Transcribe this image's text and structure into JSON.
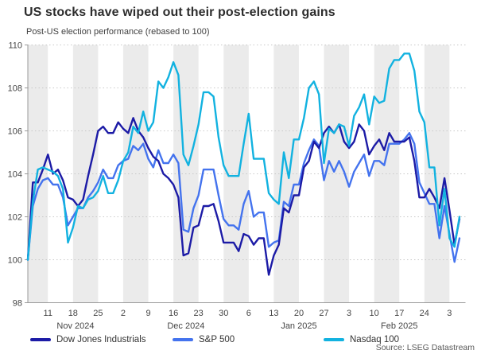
{
  "header": {
    "title": "US stocks have wiped out their post-election gains",
    "subtitle": "Post-US election performance (rebased to 100)"
  },
  "source": "Source: LSEG Datastream",
  "legend": [
    {
      "label": "Dow Jones Industrials",
      "color": "#1c1ba6"
    },
    {
      "label": "S&P 500",
      "color": "#4473ee"
    },
    {
      "label": "Nasdaq 100",
      "color": "#12b2e0"
    }
  ],
  "colors": {
    "band": "#ebebeb",
    "grid": "#c8c8c8",
    "axis": "#9a9a9a",
    "tick_text": "#454545"
  },
  "chart_data": {
    "type": "line",
    "title": "US stocks have wiped out their post-election gains",
    "subtitle": "Post-US election performance (rebased to 100)",
    "ylim": [
      98,
      110
    ],
    "y_ticks": [
      98,
      100,
      102,
      104,
      106,
      108,
      110
    ],
    "grid": "horizontal-dotted",
    "background_bands": "alternating-weekly-gray",
    "legend_position": "bottom",
    "source": "Source: LSEG Datastream",
    "x_tick_labels": [
      "11",
      "18",
      "25",
      "2",
      "9",
      "16",
      "23",
      "30",
      "6",
      "13",
      "20",
      "27",
      "3",
      "10",
      "17",
      "24",
      "3"
    ],
    "month_labels": [
      "Nov 2024",
      "Dec 2024",
      "Jan 2025",
      "Feb 2025"
    ],
    "dates": [
      "Nov 5",
      "Nov 6",
      "Nov 7",
      "Nov 8",
      "Nov 11",
      "Nov 12",
      "Nov 13",
      "Nov 14",
      "Nov 15",
      "Nov 18",
      "Nov 19",
      "Nov 20",
      "Nov 21",
      "Nov 22",
      "Nov 25",
      "Nov 26",
      "Nov 27",
      "Nov 28",
      "Nov 29",
      "Dec 2",
      "Dec 3",
      "Dec 4",
      "Dec 5",
      "Dec 6",
      "Dec 9",
      "Dec 10",
      "Dec 11",
      "Dec 12",
      "Dec 13",
      "Dec 16",
      "Dec 17",
      "Dec 18",
      "Dec 19",
      "Dec 20",
      "Dec 23",
      "Dec 24",
      "Dec 25",
      "Dec 26",
      "Dec 27",
      "Dec 30",
      "Dec 31",
      "Jan 1",
      "Jan 2",
      "Jan 3",
      "Jan 6",
      "Jan 7",
      "Jan 8",
      "Jan 9",
      "Jan 10",
      "Jan 13",
      "Jan 14",
      "Jan 15",
      "Jan 16",
      "Jan 17",
      "Jan 20",
      "Jan 21",
      "Jan 22",
      "Jan 23",
      "Jan 24",
      "Jan 27",
      "Jan 28",
      "Jan 29",
      "Jan 30",
      "Jan 31",
      "Feb 3",
      "Feb 4",
      "Feb 5",
      "Feb 6",
      "Feb 7",
      "Feb 10",
      "Feb 11",
      "Feb 12",
      "Feb 13",
      "Feb 14",
      "Feb 17",
      "Feb 18",
      "Feb 19",
      "Feb 20",
      "Feb 21",
      "Feb 24",
      "Feb 25",
      "Feb 26",
      "Feb 27",
      "Feb 28",
      "Mar 3",
      "Mar 4",
      "Mar 5"
    ],
    "series": [
      {
        "name": "Dow Jones Industrials",
        "color": "#1c1ba6",
        "values": [
          100.0,
          103.6,
          103.6,
          104.2,
          104.9,
          104.0,
          104.2,
          103.7,
          102.9,
          102.8,
          102.5,
          102.8,
          103.9,
          104.9,
          106.0,
          106.2,
          105.9,
          105.9,
          106.4,
          106.1,
          105.9,
          106.6,
          106.0,
          105.7,
          105.2,
          104.8,
          104.6,
          104.0,
          103.8,
          103.5,
          102.9,
          100.2,
          100.3,
          101.5,
          101.6,
          102.5,
          102.5,
          102.6,
          101.8,
          100.8,
          100.8,
          100.8,
          100.4,
          101.2,
          101.1,
          100.7,
          101.0,
          101.0,
          99.3,
          100.2,
          100.7,
          102.4,
          102.2,
          103.0,
          103.0,
          104.3,
          104.6,
          105.5,
          105.2,
          105.9,
          106.2,
          105.9,
          106.3,
          105.5,
          105.2,
          105.5,
          106.3,
          106.0,
          104.9,
          105.3,
          105.6,
          105.1,
          105.9,
          105.5,
          105.5,
          105.5,
          105.7,
          104.6,
          102.9,
          102.9,
          103.3,
          102.9,
          102.4,
          103.8,
          102.3,
          100.7,
          101.9
        ]
      },
      {
        "name": "S&P 500",
        "color": "#4473ee",
        "values": [
          100.0,
          102.5,
          103.3,
          103.7,
          103.8,
          103.5,
          103.5,
          102.9,
          101.6,
          102.0,
          102.4,
          102.4,
          102.9,
          103.2,
          103.6,
          104.2,
          103.8,
          103.8,
          104.4,
          104.6,
          104.7,
          105.3,
          105.1,
          105.4,
          104.7,
          104.3,
          105.1,
          104.5,
          104.5,
          104.9,
          104.5,
          101.4,
          101.3,
          102.4,
          103.0,
          104.2,
          104.2,
          104.2,
          103.0,
          101.9,
          101.6,
          101.6,
          101.4,
          102.6,
          103.2,
          102.0,
          102.2,
          102.2,
          100.6,
          100.8,
          100.9,
          102.7,
          102.5,
          103.5,
          103.5,
          104.5,
          105.1,
          105.6,
          105.3,
          103.7,
          104.6,
          104.1,
          104.6,
          104.1,
          103.4,
          104.1,
          104.5,
          104.9,
          103.9,
          104.6,
          104.6,
          104.4,
          105.4,
          105.4,
          105.4,
          105.6,
          105.9,
          105.4,
          103.6,
          103.1,
          102.6,
          102.6,
          101.0,
          102.5,
          101.2,
          99.9,
          101.0
        ]
      },
      {
        "name": "Nasdaq 100",
        "color": "#12b2e0",
        "values": [
          100.0,
          102.7,
          104.2,
          104.3,
          104.2,
          104.1,
          103.9,
          103.3,
          100.8,
          101.5,
          102.5,
          102.4,
          102.8,
          102.9,
          103.2,
          103.9,
          103.1,
          103.1,
          103.7,
          104.6,
          105.0,
          106.2,
          105.9,
          106.9,
          106.0,
          106.4,
          108.3,
          108.0,
          108.5,
          109.2,
          108.6,
          104.9,
          104.4,
          105.3,
          106.3,
          107.8,
          107.8,
          107.6,
          105.7,
          104.4,
          103.9,
          103.9,
          103.9,
          105.4,
          106.8,
          104.7,
          104.7,
          104.7,
          103.1,
          102.8,
          102.6,
          105.0,
          103.8,
          105.6,
          105.6,
          106.6,
          108.0,
          108.3,
          107.7,
          104.5,
          106.1,
          105.9,
          106.3,
          106.2,
          105.3,
          106.7,
          107.1,
          107.7,
          106.3,
          107.6,
          107.3,
          107.4,
          108.9,
          109.3,
          109.3,
          109.6,
          109.6,
          108.8,
          106.9,
          106.4,
          104.3,
          104.3,
          101.6,
          103.3,
          101.0,
          100.6,
          102.0
        ]
      }
    ]
  }
}
